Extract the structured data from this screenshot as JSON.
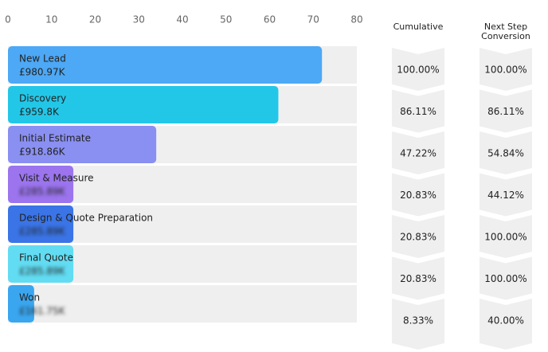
{
  "chart_data": {
    "type": "funnel",
    "xlim": [
      0,
      80
    ],
    "xticks": [
      0,
      10,
      20,
      30,
      40,
      50,
      60,
      70,
      80
    ],
    "categories": [
      "New Lead",
      "Discovery",
      "Initial Estimate",
      "Visit & Measure",
      "Design & Quote Preparation",
      "Final Quote",
      "Won"
    ],
    "values": [
      72,
      62,
      34,
      15,
      15,
      15,
      6
    ],
    "amount_labels": [
      "£980.97K",
      "£959.8K",
      "£918.86K",
      "£285.89K",
      "£285.89K",
      "£285.89K",
      "£161.75K"
    ],
    "colors": [
      "#4da8f5",
      "#22c7e8",
      "#8a8ff2",
      "#9b74ee",
      "#3a74e6",
      "#62dcf2",
      "#3aa6f0"
    ],
    "cumulative": {
      "name": "Cumulative",
      "values": [
        100,
        86.11,
        47.22,
        20.83,
        20.83,
        20.83,
        8.33
      ],
      "value_labels": [
        "100.00%",
        "86.11%",
        "47.22%",
        "20.83%",
        "20.83%",
        "20.83%",
        "8.33%"
      ]
    },
    "next_step": {
      "name": "Next Step Conversion",
      "values": [
        100,
        86.11,
        54.84,
        44.12,
        100,
        100,
        40
      ],
      "value_labels": [
        "100.00%",
        "86.11%",
        "54.84%",
        "44.12%",
        "100.00%",
        "100.00%",
        "40.00%"
      ]
    }
  }
}
